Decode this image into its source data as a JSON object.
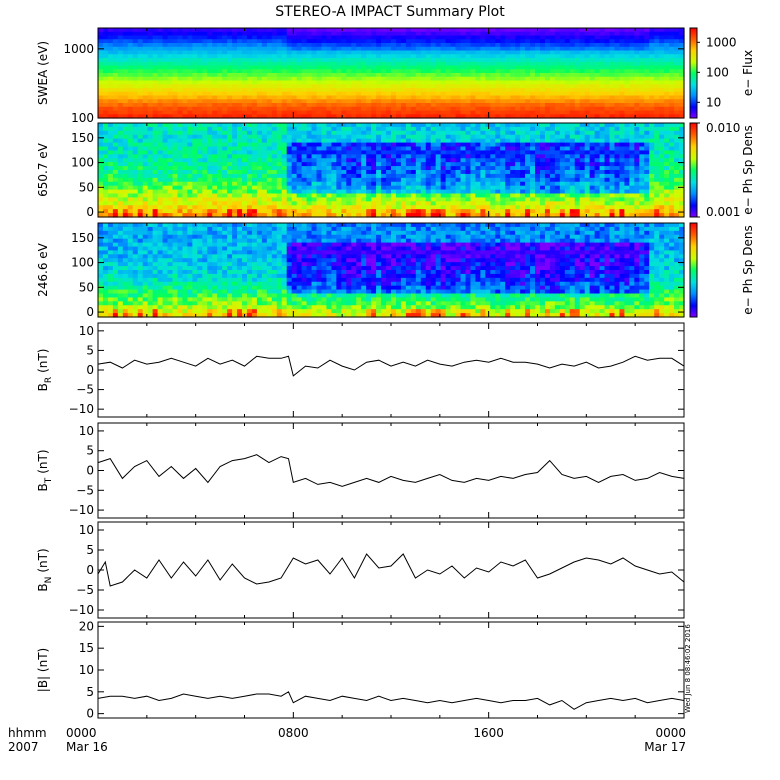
{
  "title": "STEREO-A IMPACT Summary Plot",
  "timestamp": "Wed Jun 8 08:46:02 2016",
  "time_axis": {
    "corner_top": "hhmm",
    "corner_bottom": "2007",
    "ticks": [
      {
        "time": "0000",
        "date": "Mar 16",
        "hours": 0
      },
      {
        "time": "0800",
        "date": "",
        "hours": 8
      },
      {
        "time": "1600",
        "date": "",
        "hours": 16
      },
      {
        "time": "0000",
        "date": "Mar 17",
        "hours": 24
      }
    ],
    "range_hours": [
      0,
      24
    ]
  },
  "colors": {
    "line": "#000000",
    "colormap": [
      "#7d00ff",
      "#0000ff",
      "#0090ff",
      "#00e0e0",
      "#00ff60",
      "#c8ff00",
      "#ffd000",
      "#ff6000",
      "#ff0000"
    ]
  },
  "chart_data": [
    {
      "type": "heatmap",
      "name": "swea",
      "ylabel": "SWEA (eV)",
      "yscale": "log",
      "ylim": [
        100,
        2000
      ],
      "yticks": [
        {
          "value": 100,
          "label": "100"
        },
        {
          "value": 1000,
          "label": "1000"
        }
      ],
      "colorbar": {
        "label": "e−  Flux",
        "scale": "log",
        "range": [
          3,
          3000
        ],
        "ticks": [
          {
            "value": 10,
            "label": "10"
          },
          {
            "value": 100,
            "label": "100"
          },
          {
            "value": 1000,
            "label": "1000"
          }
        ]
      },
      "energy_profile": {
        "energy_eV": [
          100,
          150,
          200,
          300,
          500,
          700,
          1000,
          1500,
          2000
        ],
        "level": [
          0.96,
          0.88,
          0.78,
          0.66,
          0.5,
          0.4,
          0.28,
          0.14,
          0.06
        ]
      }
    },
    {
      "type": "heatmap",
      "name": "pad650",
      "ylabel": "650.7 eV",
      "ylim": [
        -10,
        180
      ],
      "yticks": [
        {
          "value": 0,
          "label": "0"
        },
        {
          "value": 50,
          "label": "50"
        },
        {
          "value": 100,
          "label": "100"
        },
        {
          "value": 150,
          "label": "150"
        }
      ],
      "colorbar": {
        "label": "e−  Ph Sp Dens",
        "scale": "log",
        "range": [
          0.001,
          0.01
        ],
        "ticks": [
          {
            "value": 0.001,
            "label": "0.001"
          },
          {
            "value": 0.01,
            "label": "0.010"
          }
        ]
      },
      "features": {
        "depletion_start_hours": 7.7,
        "depletion_end_hours": 22.5,
        "base_level": 0.55
      }
    },
    {
      "type": "heatmap",
      "name": "pad246",
      "ylabel": "246.6 eV",
      "ylim": [
        -10,
        180
      ],
      "yticks": [
        {
          "value": 0,
          "label": "0"
        },
        {
          "value": 50,
          "label": "50"
        },
        {
          "value": 100,
          "label": "100"
        },
        {
          "value": 150,
          "label": "150"
        }
      ],
      "colorbar": {
        "label": "e−  Ph Sp Dens",
        "scale": "log",
        "range": [
          0.001,
          0.01
        ],
        "ticks": []
      },
      "features": {
        "depletion_start_hours": 7.7,
        "depletion_end_hours": 22.5,
        "base_level": 0.45
      }
    },
    {
      "type": "line",
      "name": "br",
      "ylabel": "B",
      "ylabel_sub": "R",
      "ylabel_unit": "(nT)",
      "ylim": [
        -12,
        12
      ],
      "yticks": [
        {
          "value": -10,
          "label": "−10"
        },
        {
          "value": -5,
          "label": "−5"
        },
        {
          "value": 0,
          "label": "0"
        },
        {
          "value": 5,
          "label": "5"
        },
        {
          "value": 10,
          "label": "10"
        }
      ],
      "x_hours": [
        0,
        0.5,
        1,
        1.5,
        2,
        2.5,
        3,
        3.5,
        4,
        4.5,
        5,
        5.5,
        6,
        6.5,
        7,
        7.5,
        7.8,
        8,
        8.5,
        9,
        9.5,
        10,
        10.5,
        11,
        11.5,
        12,
        12.5,
        13,
        13.5,
        14,
        14.5,
        15,
        15.5,
        16,
        16.5,
        17,
        17.5,
        18,
        18.5,
        19,
        19.5,
        20,
        20.5,
        21,
        21.5,
        22,
        22.5,
        23,
        23.5,
        24
      ],
      "values": [
        1.5,
        2.0,
        0.5,
        2.5,
        1.5,
        2.0,
        3.0,
        2.0,
        1.0,
        3.0,
        1.5,
        2.5,
        1.0,
        3.5,
        3.0,
        3.0,
        3.5,
        -1.5,
        1.0,
        0.5,
        2.5,
        1.0,
        0.0,
        2.0,
        2.5,
        1.0,
        2.0,
        1.0,
        2.5,
        1.5,
        1.0,
        2.0,
        2.5,
        2.0,
        3.0,
        2.0,
        2.0,
        1.5,
        0.5,
        1.5,
        1.0,
        2.0,
        0.5,
        1.0,
        2.0,
        3.5,
        2.5,
        3.0,
        3.0,
        1.0
      ]
    },
    {
      "type": "line",
      "name": "bt",
      "ylabel": "B",
      "ylabel_sub": "T",
      "ylabel_unit": "(nT)",
      "ylim": [
        -12,
        12
      ],
      "yticks": [
        {
          "value": -10,
          "label": "−10"
        },
        {
          "value": -5,
          "label": "−5"
        },
        {
          "value": 0,
          "label": "0"
        },
        {
          "value": 5,
          "label": "5"
        },
        {
          "value": 10,
          "label": "10"
        }
      ],
      "x_hours": [
        0,
        0.5,
        1,
        1.5,
        2,
        2.5,
        3,
        3.5,
        4,
        4.5,
        5,
        5.5,
        6,
        6.5,
        7,
        7.5,
        7.8,
        8,
        8.5,
        9,
        9.5,
        10,
        10.5,
        11,
        11.5,
        12,
        12.5,
        13,
        13.5,
        14,
        14.5,
        15,
        15.5,
        16,
        16.5,
        17,
        17.5,
        18,
        18.5,
        19,
        19.5,
        20,
        20.5,
        21,
        21.5,
        22,
        22.5,
        23,
        23.5,
        24
      ],
      "values": [
        2.0,
        3.0,
        -2.0,
        1.0,
        2.5,
        -1.5,
        1.0,
        -2.0,
        0.5,
        -3.0,
        1.0,
        2.5,
        3.0,
        4.0,
        2.0,
        3.5,
        3.0,
        -3.0,
        -2.0,
        -3.5,
        -3.0,
        -4.0,
        -3.0,
        -2.0,
        -3.0,
        -1.5,
        -2.5,
        -3.0,
        -2.0,
        -1.0,
        -2.5,
        -3.0,
        -2.0,
        -2.5,
        -1.5,
        -2.0,
        -1.0,
        -0.5,
        2.5,
        -1.0,
        -2.0,
        -1.5,
        -3.0,
        -1.5,
        -1.0,
        -2.5,
        -2.0,
        -0.5,
        -1.5,
        -2.0
      ]
    },
    {
      "type": "line",
      "name": "bn",
      "ylabel": "B",
      "ylabel_sub": "N",
      "ylabel_unit": "(nT)",
      "ylim": [
        -12,
        12
      ],
      "yticks": [
        {
          "value": -10,
          "label": "−10"
        },
        {
          "value": -5,
          "label": "−5"
        },
        {
          "value": 0,
          "label": "0"
        },
        {
          "value": 5,
          "label": "5"
        },
        {
          "value": 10,
          "label": "10"
        }
      ],
      "x_hours": [
        0,
        0.3,
        0.5,
        1,
        1.5,
        2,
        2.5,
        3,
        3.5,
        4,
        4.5,
        5,
        5.5,
        6,
        6.5,
        7,
        7.5,
        8,
        8.5,
        9,
        9.5,
        10,
        10.5,
        11,
        11.5,
        12,
        12.5,
        13,
        13.5,
        14,
        14.5,
        15,
        15.5,
        16,
        16.5,
        17,
        17.5,
        18,
        18.5,
        19,
        19.5,
        20,
        20.5,
        21,
        21.5,
        22,
        22.5,
        23,
        23.5,
        24
      ],
      "values": [
        -1.0,
        2.0,
        -4.0,
        -3.0,
        0.0,
        -2.0,
        2.5,
        -2.0,
        2.0,
        -1.5,
        2.5,
        -2.5,
        1.5,
        -2.0,
        -3.5,
        -3.0,
        -2.0,
        3.0,
        1.5,
        2.5,
        -1.0,
        3.0,
        -2.0,
        4.0,
        0.5,
        1.0,
        4.0,
        -2.0,
        0.0,
        -1.0,
        1.0,
        -2.0,
        0.5,
        -0.5,
        2.0,
        1.0,
        2.5,
        -2.0,
        -1.0,
        0.5,
        2.0,
        3.0,
        2.5,
        1.5,
        3.0,
        1.0,
        0.0,
        -1.0,
        -0.5,
        -3.0
      ]
    },
    {
      "type": "line",
      "name": "bmag",
      "ylabel": "|B| (nT)",
      "ylim": [
        -1,
        21
      ],
      "yticks": [
        {
          "value": 0,
          "label": "0"
        },
        {
          "value": 5,
          "label": "5"
        },
        {
          "value": 10,
          "label": "10"
        },
        {
          "value": 15,
          "label": "15"
        },
        {
          "value": 20,
          "label": "20"
        }
      ],
      "x_hours": [
        0,
        0.5,
        1,
        1.5,
        2,
        2.5,
        3,
        3.5,
        4,
        4.5,
        5,
        5.5,
        6,
        6.5,
        7,
        7.5,
        7.8,
        8,
        8.5,
        9,
        9.5,
        10,
        10.5,
        11,
        11.5,
        12,
        12.5,
        13,
        13.5,
        14,
        14.5,
        15,
        15.5,
        16,
        16.5,
        17,
        17.5,
        18,
        18.5,
        19,
        19.5,
        20,
        20.5,
        21,
        21.5,
        22,
        22.5,
        23,
        23.5,
        24
      ],
      "values": [
        3.5,
        4.0,
        4.0,
        3.5,
        4.0,
        3.0,
        3.5,
        4.5,
        4.0,
        3.5,
        4.0,
        3.5,
        4.0,
        4.5,
        4.5,
        4.0,
        5.0,
        2.5,
        4.0,
        3.5,
        3.0,
        4.0,
        3.5,
        3.0,
        4.0,
        3.0,
        3.5,
        3.0,
        2.5,
        3.0,
        2.5,
        3.0,
        3.5,
        3.0,
        2.5,
        3.0,
        3.0,
        3.5,
        2.0,
        3.0,
        1.0,
        2.5,
        3.0,
        3.5,
        3.0,
        3.5,
        2.5,
        3.0,
        3.5,
        3.0
      ]
    }
  ]
}
